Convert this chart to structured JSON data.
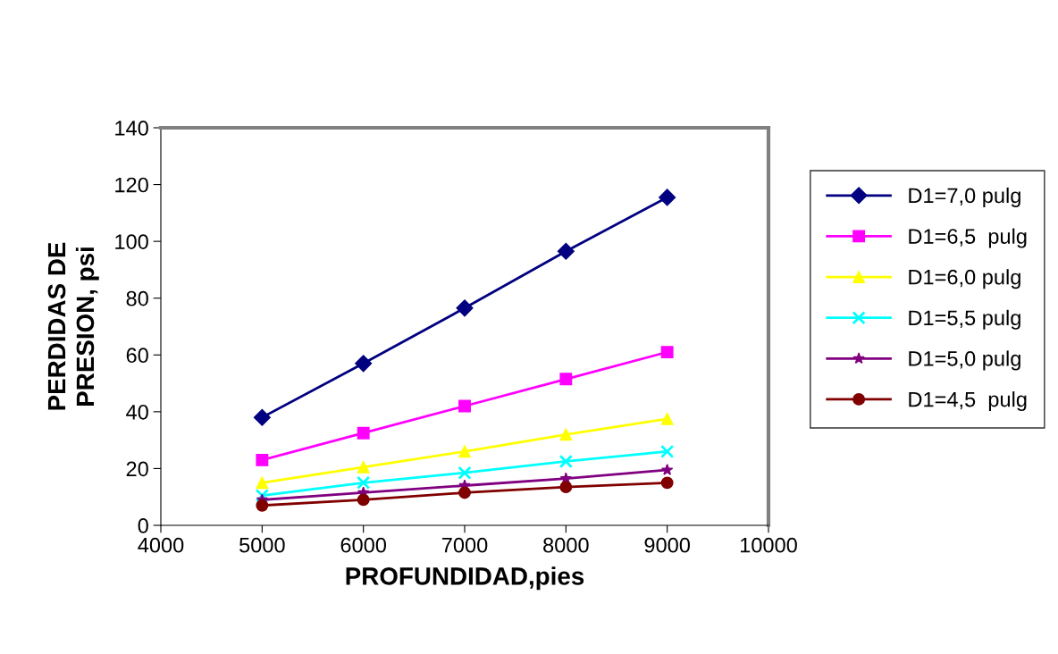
{
  "chart_data": {
    "type": "line",
    "xlabel": "PROFUNDIDAD,pies",
    "ylabel": "PERDIDAS DE\nPRESION, psi",
    "x": [
      5000,
      6000,
      7000,
      8000,
      9000
    ],
    "xlim": [
      4000,
      10000
    ],
    "xticks": [
      4000,
      5000,
      6000,
      7000,
      8000,
      9000,
      10000
    ],
    "ylim": [
      0,
      140
    ],
    "yticks": [
      0,
      20,
      40,
      60,
      80,
      100,
      120,
      140
    ],
    "grid": false,
    "legend": "right",
    "line_style": "solid",
    "series": [
      {
        "name": "D1=7,0 pulg",
        "color": "#000080",
        "marker": "diamond",
        "values": [
          38,
          57,
          76.5,
          96.5,
          115.5
        ]
      },
      {
        "name": "D1=6,5  pulg",
        "color": "#ff00ff",
        "marker": "square",
        "values": [
          23,
          32.5,
          42,
          51.5,
          61
        ]
      },
      {
        "name": "D1=6,0 pulg",
        "color": "#ffff00",
        "marker": "triangle",
        "values": [
          15,
          20.5,
          26,
          32,
          37.5
        ]
      },
      {
        "name": "D1=5,5 pulg",
        "color": "#00ffff",
        "marker": "cross",
        "values": [
          10.5,
          15,
          18.5,
          22.5,
          26
        ]
      },
      {
        "name": "D1=5,0 pulg",
        "color": "#800080",
        "marker": "star",
        "values": [
          9,
          11.5,
          14,
          16.5,
          19.5
        ]
      },
      {
        "name": "D1=4,5  pulg",
        "color": "#800000",
        "marker": "circle",
        "values": [
          7,
          9,
          11.5,
          13.5,
          15
        ]
      }
    ]
  }
}
